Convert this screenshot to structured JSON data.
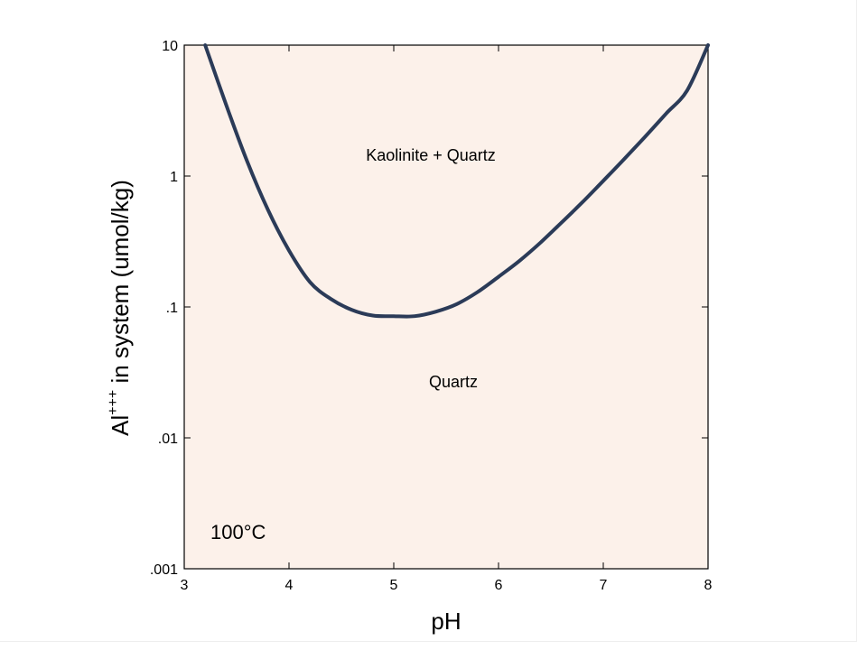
{
  "chart_data": {
    "type": "line",
    "x": [
      3.2,
      3.4,
      3.6,
      3.8,
      4.0,
      4.2,
      4.4,
      4.6,
      4.8,
      5.0,
      5.2,
      5.4,
      5.6,
      5.8,
      6.0,
      6.2,
      6.4,
      6.6,
      6.8,
      7.0,
      7.2,
      7.4,
      7.6,
      7.8,
      8.0
    ],
    "series": [
      {
        "values": [
          10,
          3.5,
          1.3,
          0.55,
          0.27,
          0.155,
          0.115,
          0.095,
          0.086,
          0.085,
          0.085,
          0.092,
          0.105,
          0.13,
          0.17,
          0.225,
          0.31,
          0.44,
          0.63,
          0.92,
          1.35,
          2.0,
          3.0,
          4.5,
          10
        ],
        "color": "#2b3b58"
      }
    ],
    "xlabel": "pH",
    "ylabel_main": "Al",
    "ylabel_sup": "+++",
    "ylabel_rest": " in system (umol/kg)",
    "xlim": [
      3,
      8
    ],
    "ylim": [
      0.001,
      10
    ],
    "yscale": "log",
    "x_ticks": [
      "3",
      "4",
      "5",
      "6",
      "7",
      "8"
    ],
    "y_ticks": [
      ".001",
      ".01",
      ".1",
      "1",
      "10"
    ],
    "grid": false,
    "regions": {
      "upper": "Kaolinite + Quartz",
      "lower": "Quartz"
    },
    "annotation": "100°C",
    "background_color": "#fcf1ea",
    "line_color": "#2b3b58"
  }
}
